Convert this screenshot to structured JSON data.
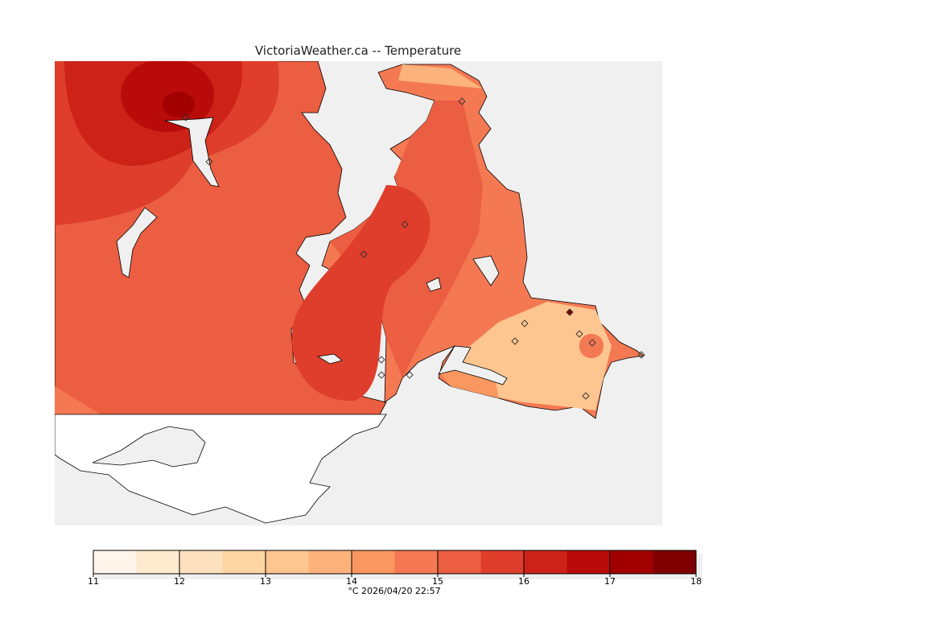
{
  "title": "VictoriaWeather.ca -- Temperature",
  "legend": {
    "ticks": [
      "11",
      "12",
      "13",
      "14",
      "15",
      "16",
      "17",
      "18"
    ],
    "min": 11,
    "max": 18,
    "step": 0.5,
    "colors": [
      "#fff5eb",
      "#feeacf",
      "#fde1bf",
      "#fdd5a3",
      "#fdc58f",
      "#fcb27b",
      "#fa9760",
      "#f47953",
      "#eb5e41",
      "#de3e2b",
      "#cc2218",
      "#b90b0a",
      "#a20000",
      "#7f0000"
    ],
    "caption": "°C  2026/04/20 22:57"
  },
  "map": {
    "water_color": "#f0f0f0",
    "land_outside_color": "#ffffff"
  }
}
